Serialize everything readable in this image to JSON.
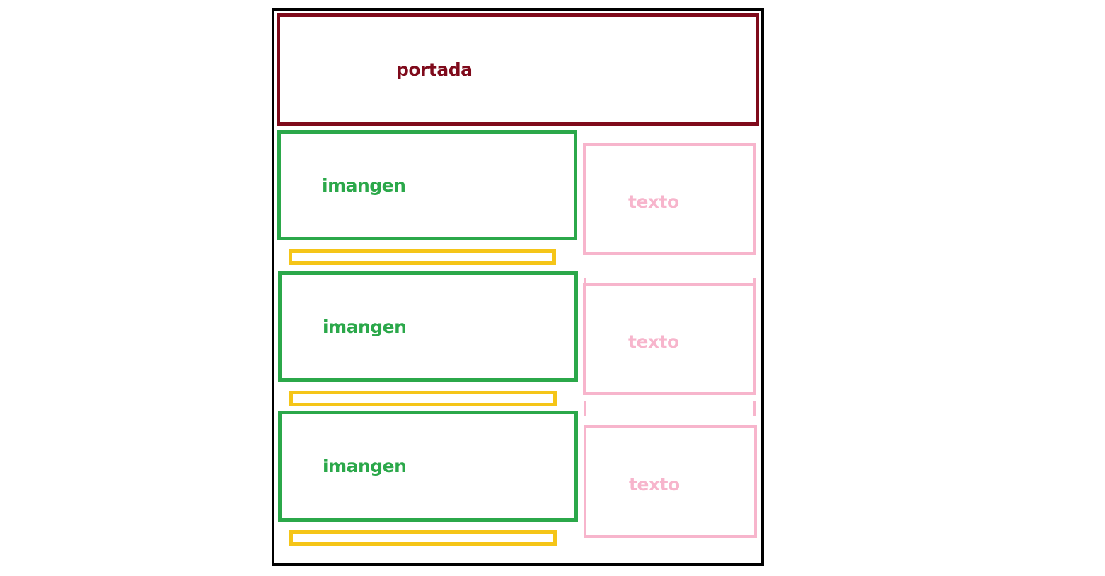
{
  "diagram": {
    "header": {
      "label": "portada"
    },
    "rows": [
      {
        "image_label": "imangen",
        "text_label": "texto"
      },
      {
        "image_label": "imangen",
        "text_label": "texto"
      },
      {
        "image_label": "imangen",
        "text_label": "texto"
      }
    ]
  },
  "colors": {
    "frame": "#000000",
    "header": "#7f0a1b",
    "image": "#2ba84a",
    "text": "#f7b5cc",
    "caption": "#f5c518"
  }
}
